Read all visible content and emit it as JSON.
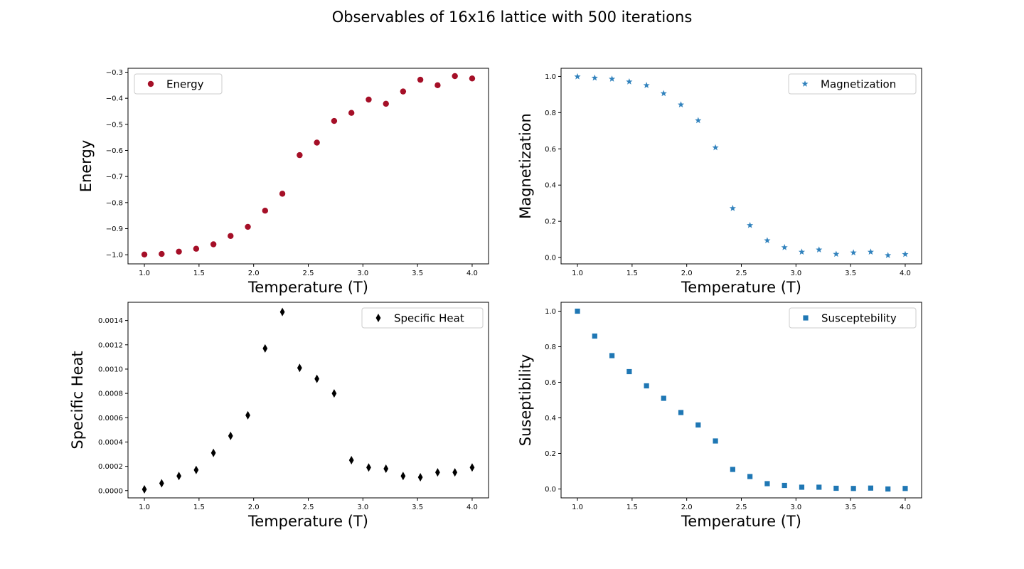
{
  "title": "Observables of 16x16 lattice with 500 iterations",
  "chart_data": [
    {
      "type": "scatter",
      "id": "energy",
      "xlabel": "Temperature (T)",
      "ylabel": "Energy",
      "xlim": [
        0.85,
        4.15
      ],
      "ylim": [
        -1.035,
        -0.285
      ],
      "xticks": [
        1.0,
        1.5,
        2.0,
        2.5,
        3.0,
        3.5,
        4.0
      ],
      "xtick_labels": [
        "1.0",
        "1.5",
        "2.0",
        "2.5",
        "3.0",
        "3.5",
        "4.0"
      ],
      "yticks": [
        -1.0,
        -0.9,
        -0.8,
        -0.7,
        -0.6,
        -0.5,
        -0.4,
        -0.3
      ],
      "ytick_labels": [
        "−1.0",
        "−0.9",
        "−0.8",
        "−0.7",
        "−0.6",
        "−0.5",
        "−0.4",
        "−0.3"
      ],
      "legend_position": "top-left",
      "series": [
        {
          "name": "Energy",
          "marker": "circle",
          "color": "#a50f27",
          "x": [
            1.0,
            1.158,
            1.316,
            1.474,
            1.632,
            1.789,
            1.947,
            2.105,
            2.263,
            2.421,
            2.579,
            2.737,
            2.895,
            3.053,
            3.211,
            3.368,
            3.526,
            3.684,
            3.842,
            4.0
          ],
          "y": [
            -0.999,
            -0.997,
            -0.988,
            -0.977,
            -0.96,
            -0.928,
            -0.893,
            -0.831,
            -0.766,
            -0.618,
            -0.57,
            -0.487,
            -0.456,
            -0.405,
            -0.421,
            -0.374,
            -0.329,
            -0.35,
            -0.315,
            -0.324
          ]
        }
      ]
    },
    {
      "type": "scatter",
      "id": "magnetization",
      "xlabel": "Temperature (T)",
      "ylabel": "Magnetization",
      "xlim": [
        0.85,
        4.15
      ],
      "ylim": [
        -0.035,
        1.045
      ],
      "xticks": [
        1.0,
        1.5,
        2.0,
        2.5,
        3.0,
        3.5,
        4.0
      ],
      "xtick_labels": [
        "1.0",
        "1.5",
        "2.0",
        "2.5",
        "3.0",
        "3.5",
        "4.0"
      ],
      "yticks": [
        0.0,
        0.2,
        0.4,
        0.6,
        0.8,
        1.0
      ],
      "ytick_labels": [
        "0.0",
        "0.2",
        "0.4",
        "0.6",
        "0.8",
        "1.0"
      ],
      "legend_position": "top-right",
      "series": [
        {
          "name": "Magnetization",
          "marker": "star",
          "color": "#3182bd",
          "x": [
            1.0,
            1.158,
            1.316,
            1.474,
            1.632,
            1.789,
            1.947,
            2.105,
            2.263,
            2.421,
            2.579,
            2.737,
            2.895,
            3.053,
            3.211,
            3.368,
            3.526,
            3.684,
            3.842,
            4.0
          ],
          "y": [
            0.999,
            0.992,
            0.986,
            0.971,
            0.951,
            0.906,
            0.844,
            0.757,
            0.607,
            0.272,
            0.178,
            0.094,
            0.056,
            0.031,
            0.043,
            0.019,
            0.027,
            0.031,
            0.012,
            0.018
          ]
        }
      ]
    },
    {
      "type": "scatter",
      "id": "specific-heat",
      "xlabel": "Temperature (T)",
      "ylabel": "Specific Heat",
      "xlim": [
        0.85,
        4.15
      ],
      "ylim": [
        -6e-05,
        0.00155
      ],
      "xticks": [
        1.0,
        1.5,
        2.0,
        2.5,
        3.0,
        3.5,
        4.0
      ],
      "xtick_labels": [
        "1.0",
        "1.5",
        "2.0",
        "2.5",
        "3.0",
        "3.5",
        "4.0"
      ],
      "yticks": [
        0.0,
        0.0002,
        0.0004,
        0.0006,
        0.0008,
        0.001,
        0.0012,
        0.0014
      ],
      "ytick_labels": [
        "0.0000",
        "0.0002",
        "0.0004",
        "0.0006",
        "0.0008",
        "0.0010",
        "0.0012",
        "0.0014"
      ],
      "legend_position": "top-right",
      "series": [
        {
          "name": "Specific Heat",
          "marker": "thin-diamond",
          "color": "#000000",
          "x": [
            1.0,
            1.158,
            1.316,
            1.474,
            1.632,
            1.789,
            1.947,
            2.105,
            2.263,
            2.421,
            2.579,
            2.737,
            2.895,
            3.053,
            3.211,
            3.368,
            3.526,
            3.684,
            3.842,
            4.0
          ],
          "y": [
            1e-05,
            6e-05,
            0.00012,
            0.00017,
            0.00031,
            0.00045,
            0.00062,
            0.00117,
            0.00147,
            0.00101,
            0.00092,
            0.0008,
            0.00025,
            0.00019,
            0.00018,
            0.00012,
            0.00011,
            0.00015,
            0.00015,
            0.00019
          ]
        }
      ]
    },
    {
      "type": "scatter",
      "id": "susceptibility",
      "xlabel": "Temperature (T)",
      "ylabel": "Suseptibility",
      "xlim": [
        0.85,
        4.15
      ],
      "ylim": [
        -0.05,
        1.05
      ],
      "xticks": [
        1.0,
        1.5,
        2.0,
        2.5,
        3.0,
        3.5,
        4.0
      ],
      "xtick_labels": [
        "1.0",
        "1.5",
        "2.0",
        "2.5",
        "3.0",
        "3.5",
        "4.0"
      ],
      "yticks": [
        0.0,
        0.2,
        0.4,
        0.6,
        0.8,
        1.0
      ],
      "ytick_labels": [
        "0.0",
        "0.2",
        "0.4",
        "0.6",
        "0.8",
        "1.0"
      ],
      "legend_position": "top-right",
      "series": [
        {
          "name": "Susceptebility",
          "marker": "square",
          "color": "#1f77b4",
          "x": [
            1.0,
            1.158,
            1.316,
            1.474,
            1.632,
            1.789,
            1.947,
            2.105,
            2.263,
            2.421,
            2.579,
            2.737,
            2.895,
            3.053,
            3.211,
            3.368,
            3.526,
            3.684,
            3.842,
            4.0
          ],
          "y": [
            1.0,
            0.86,
            0.75,
            0.66,
            0.58,
            0.51,
            0.43,
            0.36,
            0.27,
            0.11,
            0.07,
            0.03,
            0.02,
            0.01,
            0.01,
            0.004,
            0.003,
            0.005,
            0.0,
            0.003
          ]
        }
      ]
    }
  ]
}
